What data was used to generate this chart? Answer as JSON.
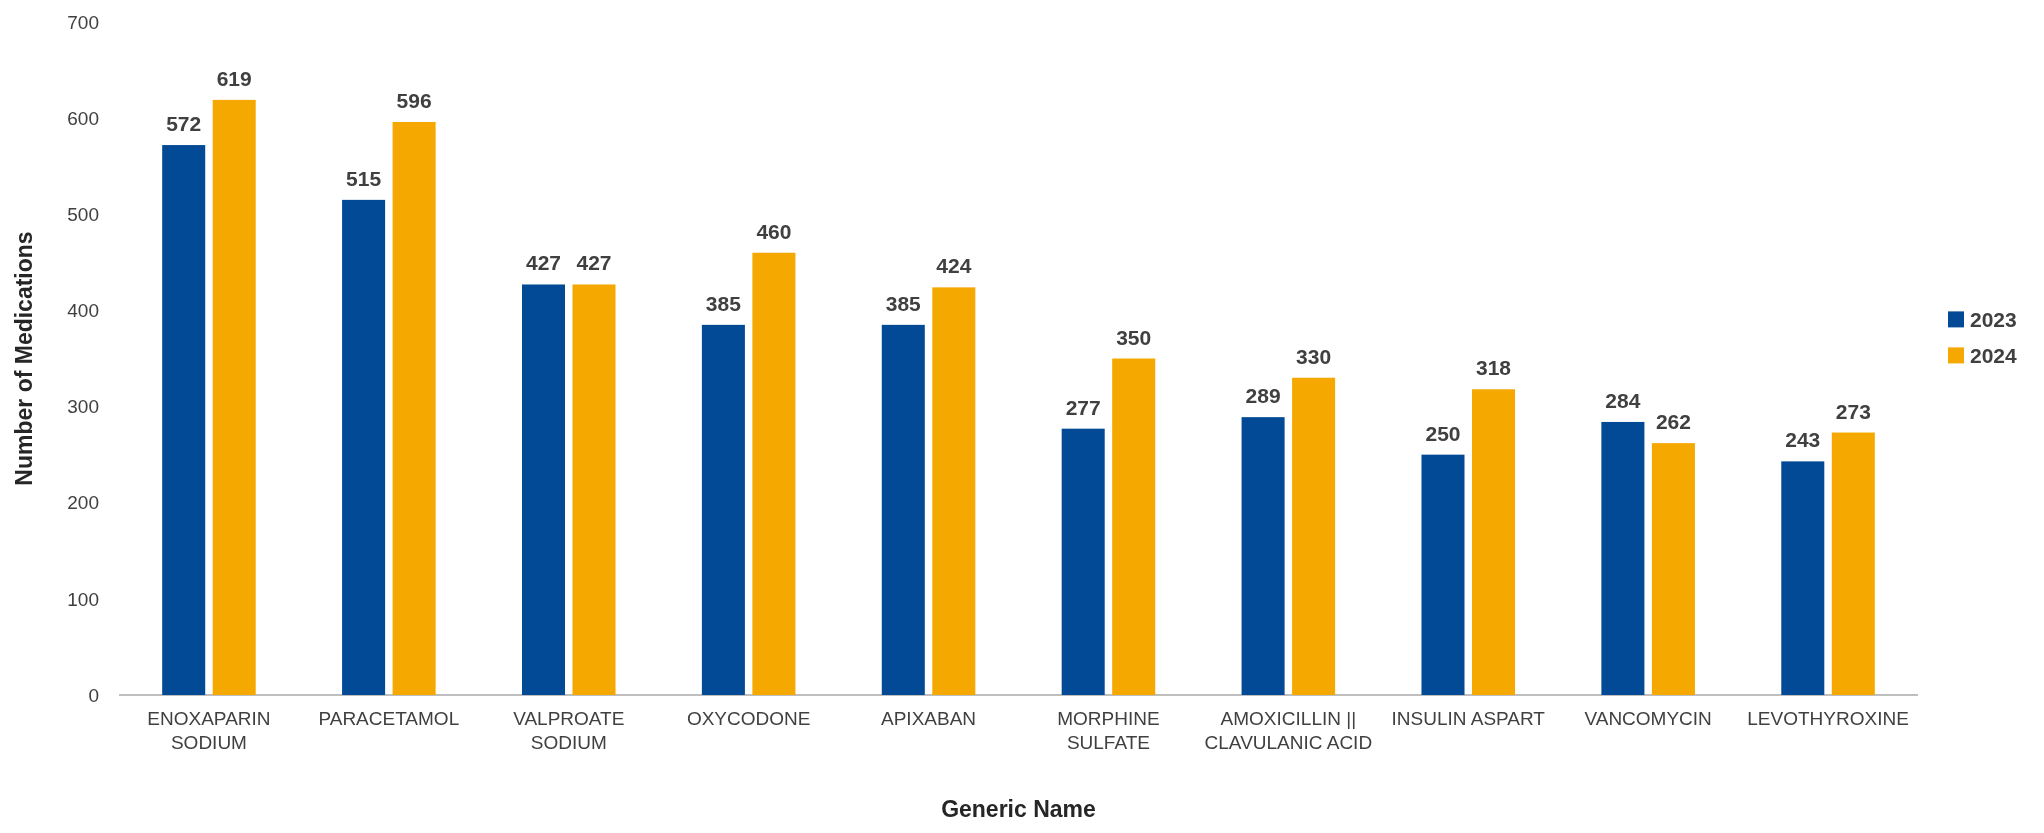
{
  "chart_data": {
    "type": "bar",
    "xlabel": "Generic Name",
    "ylabel": "Number of Medications",
    "categories": [
      "ENOXAPARIN SODIUM",
      "PARACETAMOL",
      "VALPROATE SODIUM",
      "OXYCODONE",
      "APIXABAN",
      "MORPHINE SULFATE",
      "AMOXICILLIN || CLAVULANIC ACID",
      "INSULIN ASPART",
      "VANCOMYCIN",
      "LEVOTHYROXINE"
    ],
    "series": [
      {
        "name": "2023",
        "color": "#034a96",
        "values": [
          572,
          515,
          427,
          385,
          385,
          277,
          289,
          250,
          284,
          243
        ]
      },
      {
        "name": "2024",
        "color": "#f5a800",
        "values": [
          619,
          596,
          427,
          460,
          424,
          350,
          330,
          318,
          262,
          273
        ]
      }
    ],
    "ylim": [
      0,
      700
    ],
    "yticks": [
      0,
      100,
      200,
      300,
      400,
      500,
      600,
      700
    ],
    "data_labels": true,
    "legend": "right",
    "grid": false
  }
}
